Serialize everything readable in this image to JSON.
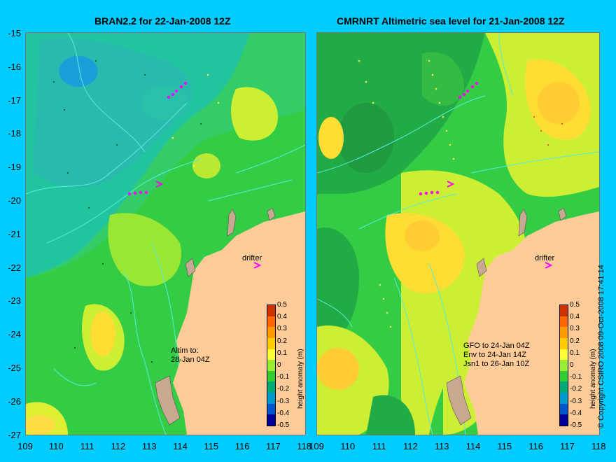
{
  "left_panel": {
    "title": "BRAN2.2 for 22-Jan-2008 12Z",
    "note": "Altim to:\n28-Jan 04Z",
    "drifter_label": "drifter"
  },
  "right_panel": {
    "title": "CMRNRT Altimetric sea level  for 21-Jan-2008 12Z",
    "note": "GFO to 24-Jan 04Z\nEnv to 24-Jan 14Z\nJsn1 to 26-Jan 10Z",
    "drifter_label": "drifter"
  },
  "y_ticks": [
    "-15",
    "-16",
    "-17",
    "-18",
    "-19",
    "-20",
    "-21",
    "-22",
    "-23",
    "-24",
    "-25",
    "-26",
    "-27"
  ],
  "x_ticks_left": [
    "109",
    "110",
    "111",
    "112",
    "113",
    "114",
    "115",
    "116",
    "117",
    "118"
  ],
  "x_ticks_right": [
    "109",
    "110",
    "111",
    "112",
    "113",
    "114",
    "115",
    "116",
    "117",
    "118"
  ],
  "colorbar": {
    "title": "height anomaly (m)",
    "ticks": [
      "0.5",
      "0.4",
      "0.3",
      "0.2",
      "0.1",
      "0",
      "-0.1",
      "-0.2",
      "-0.3",
      "-0.4",
      "-0.5"
    ],
    "colors": [
      "#cc3300",
      "#ff6600",
      "#ff9900",
      "#ffcc00",
      "#ffff33",
      "#99ee33",
      "#33cc33",
      "#00aa77",
      "#0099cc",
      "#0055cc",
      "#000099"
    ]
  },
  "copyright": "© Copyright CSIRO 2008     09-Oct-2008 17:41:14",
  "colors": {
    "background": "#00ccff",
    "land": "#ffcc99",
    "coast_shoal": "#c8a890",
    "drifter": "#ff00ff"
  }
}
